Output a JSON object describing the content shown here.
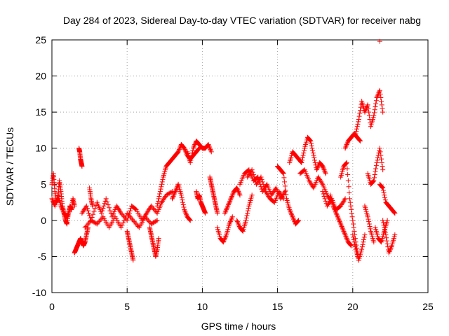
{
  "chart_data": {
    "type": "scatter",
    "title": "Day 284 of 2023, Sidereal Day-to-day VTEC variation (SDTVAR) for receiver nabg",
    "xlabel": "GPS time / hours",
    "ylabel": "SDTVAR / TECUs",
    "xlim": [
      0,
      25
    ],
    "ylim": [
      -10,
      25
    ],
    "xticks": [
      0,
      5,
      10,
      15,
      20,
      25
    ],
    "yticks": [
      -10,
      -5,
      0,
      5,
      10,
      15,
      20,
      25
    ],
    "grid": true,
    "marker": "+",
    "series": [
      {
        "name": "SDTVAR",
        "color": "#ff0000",
        "tracks": [
          {
            "x": [
              0.0,
              0.1,
              0.2,
              0.3,
              0.4,
              0.5,
              0.6,
              0.7,
              0.8,
              0.9,
              1.0,
              1.1,
              1.2,
              1.3,
              1.4,
              1.5
            ],
            "y": [
              5.0,
              6.5,
              4.0,
              2.5,
              3.0,
              5.5,
              4.0,
              2.0,
              1.0,
              0.0,
              -0.5,
              1.0,
              2.0,
              1.5,
              3.0,
              2.0
            ]
          },
          {
            "x": [
              0.0,
              0.2,
              0.4,
              0.6,
              0.8,
              1.0,
              1.2
            ],
            "y": [
              3.0,
              2.0,
              3.5,
              2.0,
              1.0,
              0.5,
              1.5
            ]
          },
          {
            "x": [
              1.5,
              1.6,
              1.7,
              1.8,
              1.9,
              2.0,
              2.1,
              2.2,
              2.3,
              2.4
            ],
            "y": [
              -4.5,
              -4.0,
              -3.5,
              -3.0,
              -2.5,
              -3.0,
              -3.5,
              -3.0,
              -2.0,
              -1.0
            ]
          },
          {
            "x": [
              1.8,
              1.85,
              1.9,
              1.95,
              2.0
            ],
            "y": [
              10.0,
              9.5,
              8.5,
              8.0,
              7.5
            ]
          },
          {
            "x": [
              2.0,
              2.3,
              2.6,
              3.0,
              3.3,
              3.6,
              4.0,
              4.3,
              4.6,
              5.0,
              5.3,
              5.6,
              6.0,
              6.3,
              6.6,
              7.0,
              7.3,
              7.6,
              8.0
            ],
            "y": [
              1.0,
              2.0,
              0.0,
              2.5,
              1.0,
              3.0,
              0.5,
              2.0,
              1.0,
              0.0,
              2.0,
              1.5,
              0.0,
              1.0,
              2.0,
              1.0,
              2.5,
              3.5,
              4.0
            ]
          },
          {
            "x": [
              2.2,
              2.6,
              3.0,
              3.4,
              3.8,
              4.2,
              4.6,
              5.0,
              5.4,
              5.8,
              6.2,
              6.6,
              7.0
            ],
            "y": [
              -1.0,
              0.0,
              -0.5,
              0.5,
              -1.0,
              0.5,
              -1.0,
              1.0,
              0.0,
              -1.0,
              0.5,
              -0.5,
              0.0
            ]
          },
          {
            "x": [
              2.5,
              2.6,
              2.7
            ],
            "y": [
              4.5,
              3.0,
              2.0
            ]
          },
          {
            "x": [
              5.0,
              5.1,
              5.2,
              5.3,
              5.4
            ],
            "y": [
              -1.5,
              -2.5,
              -3.5,
              -4.5,
              -5.5
            ]
          },
          {
            "x": [
              6.5,
              6.6,
              6.7,
              6.8,
              6.9,
              7.0,
              7.1
            ],
            "y": [
              -1.0,
              -2.0,
              -3.0,
              -4.0,
              -5.0,
              -4.0,
              -2.5
            ]
          },
          {
            "x": [
              7.0,
              7.2,
              7.4,
              7.6,
              7.8,
              8.0,
              8.2,
              8.4,
              8.6,
              8.8,
              9.0,
              9.2,
              9.4,
              9.6,
              9.8
            ],
            "y": [
              2.0,
              4.0,
              6.0,
              7.5,
              8.0,
              8.5,
              9.0,
              9.5,
              10.5,
              10.0,
              9.0,
              8.5,
              9.0,
              9.5,
              10.0
            ]
          },
          {
            "x": [
              8.0,
              8.2,
              8.4,
              8.6,
              8.8,
              9.0,
              9.2
            ],
            "y": [
              3.0,
              4.0,
              5.0,
              3.5,
              1.5,
              0.5,
              0.0
            ]
          },
          {
            "x": [
              9.0,
              9.2,
              9.4,
              9.6,
              9.8,
              10.0,
              10.2,
              10.4,
              10.6
            ],
            "y": [
              9.5,
              8.0,
              10.0,
              11.0,
              10.5,
              10.0,
              10.0,
              10.5,
              9.5
            ]
          },
          {
            "x": [
              9.6,
              9.7,
              9.8,
              9.9,
              10.0,
              10.1,
              10.2
            ],
            "y": [
              4.0,
              3.0,
              3.5,
              2.5,
              2.0,
              1.5,
              1.0
            ]
          },
          {
            "x": [
              10.5,
              10.6,
              10.7,
              10.8,
              10.9,
              11.0
            ],
            "y": [
              6.0,
              5.0,
              4.0,
              3.0,
              2.0,
              1.0
            ]
          },
          {
            "x": [
              11.0,
              11.2,
              11.4,
              11.6,
              11.8,
              12.0
            ],
            "y": [
              -1.0,
              -2.5,
              -3.0,
              -2.0,
              -0.5,
              0.5
            ]
          },
          {
            "x": [
              11.5,
              11.7,
              11.9,
              12.1,
              12.3,
              12.5
            ],
            "y": [
              1.0,
              2.0,
              3.0,
              4.0,
              4.5,
              3.5
            ]
          },
          {
            "x": [
              12.3,
              12.5,
              12.7,
              12.9,
              13.1,
              13.3
            ],
            "y": [
              0.0,
              -1.0,
              -1.5,
              0.0,
              2.0,
              3.5
            ]
          },
          {
            "x": [
              12.5,
              12.8,
              13.1,
              13.4,
              13.7,
              14.0,
              14.3,
              14.6,
              14.9,
              15.2,
              15.5
            ],
            "y": [
              5.0,
              6.5,
              7.0,
              5.5,
              6.0,
              4.0,
              5.0,
              3.5,
              4.5,
              3.0,
              4.0
            ]
          },
          {
            "x": [
              13.0,
              13.3,
              13.6,
              13.9,
              14.2,
              14.5,
              14.8,
              15.1,
              15.4
            ],
            "y": [
              6.0,
              7.0,
              5.0,
              6.0,
              4.0,
              3.0,
              2.5,
              4.0,
              3.0
            ]
          },
          {
            "x": [
              15.0,
              15.2,
              15.4,
              15.6,
              15.8,
              16.0,
              16.2,
              16.4
            ],
            "y": [
              7.5,
              7.0,
              6.5,
              3.0,
              1.5,
              0.5,
              -0.5,
              0.0
            ]
          },
          {
            "x": [
              15.8,
              16.0,
              16.2,
              16.4,
              16.6,
              16.8,
              17.0,
              17.2,
              17.4,
              17.6,
              17.8,
              18.0,
              18.2
            ],
            "y": [
              8.0,
              9.5,
              9.0,
              8.5,
              8.0,
              10.0,
              11.5,
              11.0,
              9.0,
              7.0,
              8.0,
              7.5,
              6.5
            ]
          },
          {
            "x": [
              16.5,
              16.8,
              17.1,
              17.4,
              17.7,
              18.0,
              18.3,
              18.6
            ],
            "y": [
              6.5,
              7.0,
              5.5,
              4.5,
              6.0,
              5.0,
              3.5,
              2.5
            ]
          },
          {
            "x": [
              18.0,
              18.3,
              18.6,
              18.9,
              19.2,
              19.5
            ],
            "y": [
              4.0,
              2.0,
              3.0,
              1.5,
              2.0,
              3.0
            ]
          },
          {
            "x": [
              18.5,
              18.7,
              18.9,
              19.1,
              19.3,
              19.5,
              19.7,
              19.9
            ],
            "y": [
              3.5,
              2.0,
              1.0,
              0.0,
              -1.0,
              -2.0,
              -3.0,
              -3.5
            ]
          },
          {
            "x": [
              19.5,
              19.7,
              19.9,
              20.1,
              20.3,
              20.5
            ],
            "y": [
              10.0,
              11.0,
              11.5,
              12.0,
              11.5,
              11.0
            ]
          },
          {
            "x": [
              19.2,
              19.4,
              19.6,
              19.8,
              20.0,
              20.2,
              20.4
            ],
            "y": [
              6.0,
              7.5,
              8.0,
              3.0,
              0.0,
              -3.0,
              -5.5
            ]
          },
          {
            "x": [
              20.0,
              20.2,
              20.4,
              20.6,
              20.8
            ],
            "y": [
              -2.0,
              -4.0,
              -5.5,
              -4.0,
              -2.0
            ]
          },
          {
            "x": [
              20.2,
              20.4,
              20.6,
              20.8,
              21.0,
              21.2,
              21.4,
              21.6,
              21.8,
              22.0
            ],
            "y": [
              12.0,
              14.0,
              16.5,
              15.0,
              16.0,
              13.0,
              14.5,
              17.0,
              18.0,
              15.0
            ]
          },
          {
            "x": [
              20.8,
              21.0,
              21.2,
              21.4
            ],
            "y": [
              2.0,
              0.5,
              -1.5,
              -3.0
            ]
          },
          {
            "x": [
              21.0,
              21.2,
              21.4,
              21.6,
              21.8,
              22.0
            ],
            "y": [
              6.5,
              5.0,
              5.5,
              8.0,
              10.0,
              7.0
            ]
          },
          {
            "x": [
              21.5,
              21.7,
              21.9,
              22.1,
              22.3
            ],
            "y": [
              -1.0,
              -2.5,
              -3.0,
              -1.5,
              0.0
            ]
          },
          {
            "x": [
              21.8,
              22.0,
              22.2,
              22.4,
              22.6,
              22.8
            ],
            "y": [
              5.0,
              4.5,
              2.5,
              2.0,
              1.5,
              1.0
            ]
          },
          {
            "x": [
              22.0,
              22.2,
              22.4,
              22.6,
              22.8
            ],
            "y": [
              0.0,
              -2.0,
              -4.5,
              -3.5,
              -2.0
            ]
          },
          {
            "x": [
              21.8
            ],
            "y": [
              24.8
            ]
          }
        ]
      }
    ]
  }
}
